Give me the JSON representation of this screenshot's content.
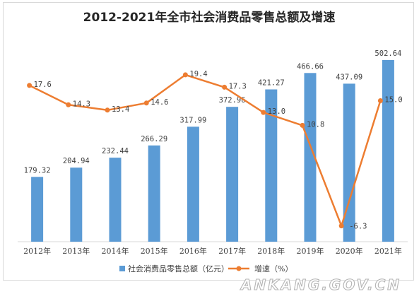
{
  "colors": {
    "bar": "#5b9bd5",
    "line": "#ed7d31",
    "axis": "#d9d9d9",
    "text": "#404040",
    "title": "#262626"
  },
  "chart_data": {
    "type": "bar+line",
    "title": "2012-2021年全市社会消费品零售总额及增速",
    "categories": [
      "2012年",
      "2013年",
      "2014年",
      "2015年",
      "2016年",
      "2017年",
      "2018年",
      "2019年",
      "2020年",
      "2021年"
    ],
    "series": [
      {
        "name": "社会消费品零售总额（亿元）",
        "type": "bar",
        "values": [
          179.32,
          204.94,
          232.44,
          266.29,
          317.99,
          372.96,
          421.27,
          466.66,
          437.09,
          502.64
        ],
        "labels": [
          "179.32",
          "204.94",
          "232.44",
          "266.29",
          "317.99",
          "372.96",
          "421.27",
          "466.66",
          "437.09",
          "502.64"
        ]
      },
      {
        "name": "增速（%）",
        "type": "line",
        "axis": "secondary",
        "values": [
          17.6,
          14.3,
          13.4,
          14.6,
          19.4,
          17.3,
          13.0,
          10.8,
          -6.3,
          15.0
        ],
        "labels": [
          "17.6",
          "14.3",
          "13.4",
          "14.6",
          "19.4",
          "17.3",
          "13.0",
          "10.8",
          "-6.3",
          "15.0"
        ]
      }
    ],
    "primary_ylim": [
      0,
      520
    ],
    "secondary_ylim": [
      -9,
      23
    ],
    "axes_visible": false,
    "grid": false,
    "legend_position": "bottom"
  },
  "watermark": "ANKANG.GOV.CN"
}
